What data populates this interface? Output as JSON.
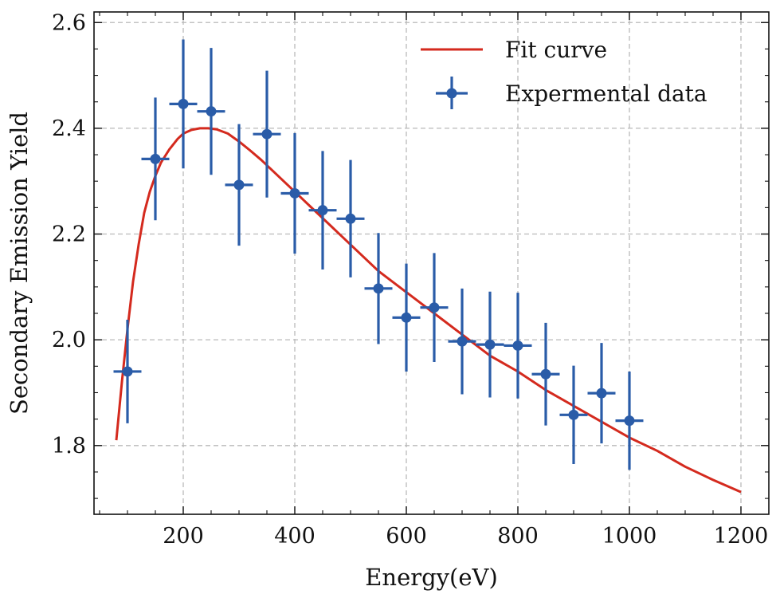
{
  "chart_data": {
    "type": "scatter",
    "xlabel": "Energy(eV)",
    "ylabel": "Secondary Emission Yield",
    "xlim": [
      40,
      1250
    ],
    "ylim": [
      1.67,
      2.62
    ],
    "xticks": [
      200,
      400,
      600,
      800,
      1000,
      1200
    ],
    "yticks": [
      1.8,
      2.0,
      2.2,
      2.4,
      2.6
    ],
    "x_minor_step": 50,
    "y_minor_step": 0.05,
    "grid": true,
    "legend_position": "top-right",
    "colors": {
      "fit": "#d42a1e",
      "data": "#2a5ca8"
    },
    "series": [
      {
        "name": "Fit curve",
        "kind": "line",
        "x": [
          80,
          90,
          100,
          110,
          120,
          130,
          140,
          150,
          160,
          175,
          190,
          200,
          215,
          230,
          245,
          260,
          280,
          300,
          320,
          340,
          360,
          380,
          400,
          420,
          440,
          460,
          480,
          500,
          550,
          600,
          650,
          700,
          750,
          800,
          850,
          900,
          950,
          1000,
          1050,
          1100,
          1150,
          1200
        ],
        "y": [
          1.81,
          1.92,
          2.02,
          2.11,
          2.18,
          2.24,
          2.28,
          2.31,
          2.335,
          2.36,
          2.38,
          2.39,
          2.397,
          2.4,
          2.4,
          2.398,
          2.39,
          2.375,
          2.358,
          2.34,
          2.32,
          2.3,
          2.28,
          2.26,
          2.24,
          2.22,
          2.2,
          2.18,
          2.13,
          2.09,
          2.05,
          2.01,
          1.97,
          1.94,
          1.905,
          1.875,
          1.845,
          1.815,
          1.79,
          1.76,
          1.735,
          1.712
        ]
      },
      {
        "name": "Expermental data",
        "kind": "errorbar",
        "x": [
          100,
          150,
          200,
          250,
          300,
          350,
          400,
          450,
          500,
          550,
          600,
          650,
          700,
          750,
          800,
          850,
          900,
          950,
          1000
        ],
        "y": [
          1.94,
          2.342,
          2.446,
          2.432,
          2.293,
          2.389,
          2.277,
          2.245,
          2.229,
          2.097,
          2.042,
          2.061,
          1.997,
          1.991,
          1.989,
          1.935,
          1.858,
          1.899,
          1.847
        ],
        "yerr": [
          0.098,
          0.116,
          0.122,
          0.12,
          0.115,
          0.12,
          0.114,
          0.112,
          0.111,
          0.105,
          0.102,
          0.103,
          0.1,
          0.1,
          0.1,
          0.097,
          0.093,
          0.095,
          0.093
        ],
        "xerr": 25
      }
    ]
  }
}
